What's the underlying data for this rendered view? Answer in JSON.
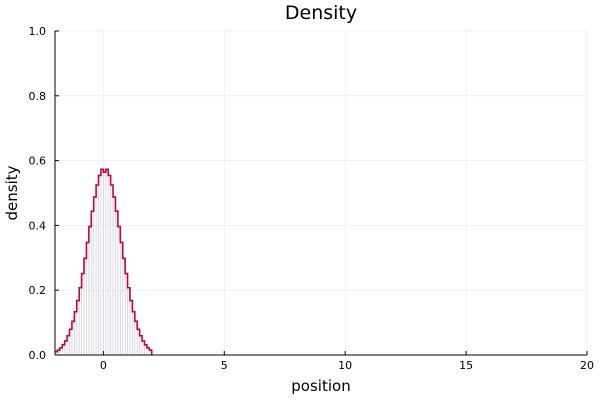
{
  "chart_data": {
    "type": "line",
    "title": "Density",
    "xlabel": "position",
    "ylabel": "density",
    "xlim": [
      -2,
      20
    ],
    "ylim": [
      0,
      1
    ],
    "x_ticks": [
      0,
      5,
      10,
      15,
      20
    ],
    "x_tick_labels": [
      "0",
      "5",
      "10",
      "15",
      "20"
    ],
    "y_ticks": [
      0,
      0.2,
      0.4,
      0.6,
      0.8,
      1
    ],
    "y_tick_labels": [
      "0.0",
      "0.2",
      "0.4",
      "0.6",
      "0.8",
      "1.0"
    ],
    "grid": true,
    "legend": "none",
    "series": [
      {
        "style": "steps",
        "color": "#c10046",
        "x": [
          -2.0,
          -1.9,
          -1.8,
          -1.7,
          -1.6,
          -1.5,
          -1.4,
          -1.3,
          -1.2,
          -1.1,
          -1.0,
          -0.9,
          -0.8,
          -0.7,
          -0.6,
          -0.5,
          -0.4,
          -0.3,
          -0.2,
          -0.1,
          0.0,
          0.1,
          0.2,
          0.3,
          0.4,
          0.5,
          0.6,
          0.7,
          0.8,
          0.9,
          1.0,
          1.1,
          1.2,
          1.3,
          1.4,
          1.5,
          1.6,
          1.7,
          1.8,
          1.9,
          2.0
        ],
        "y": [
          0.0103,
          0.0152,
          0.022,
          0.0313,
          0.0435,
          0.0594,
          0.0794,
          0.104,
          0.1335,
          0.1681,
          0.2076,
          0.2513,
          0.2983,
          0.3473,
          0.3965,
          0.4439,
          0.4874,
          0.5247,
          0.5541,
          0.5731,
          0.5642,
          0.5731,
          0.5541,
          0.5247,
          0.4874,
          0.4439,
          0.3965,
          0.3473,
          0.2983,
          0.2513,
          0.2076,
          0.1681,
          0.1335,
          0.104,
          0.0794,
          0.0594,
          0.0435,
          0.0313,
          0.022,
          0.0152,
          0.0
        ]
      }
    ]
  }
}
